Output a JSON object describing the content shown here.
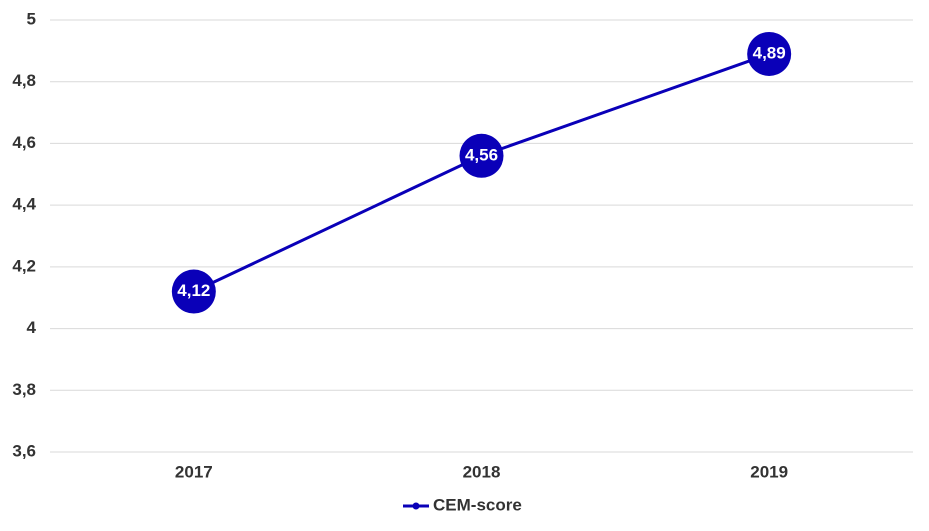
{
  "chart_data": {
    "type": "line",
    "categories": [
      "2017",
      "2018",
      "2019"
    ],
    "series": [
      {
        "name": "CEM-score",
        "color": "#0a00b8",
        "values": [
          4.12,
          4.56,
          4.89
        ],
        "value_labels": [
          "4,12",
          "4,56",
          "4,89"
        ]
      }
    ],
    "ylim": [
      3.6,
      5
    ],
    "yticks": [
      {
        "value": 3.6,
        "label": "3,6"
      },
      {
        "value": 3.8,
        "label": "3,8"
      },
      4,
      {
        "value": 4.2,
        "label": "4,2"
      },
      {
        "value": 4.4,
        "label": "4,4"
      },
      {
        "value": 4.6,
        "label": "4,6"
      },
      {
        "value": 4.8,
        "label": "4,8"
      },
      5
    ],
    "grid": true,
    "legend": "bottom"
  }
}
